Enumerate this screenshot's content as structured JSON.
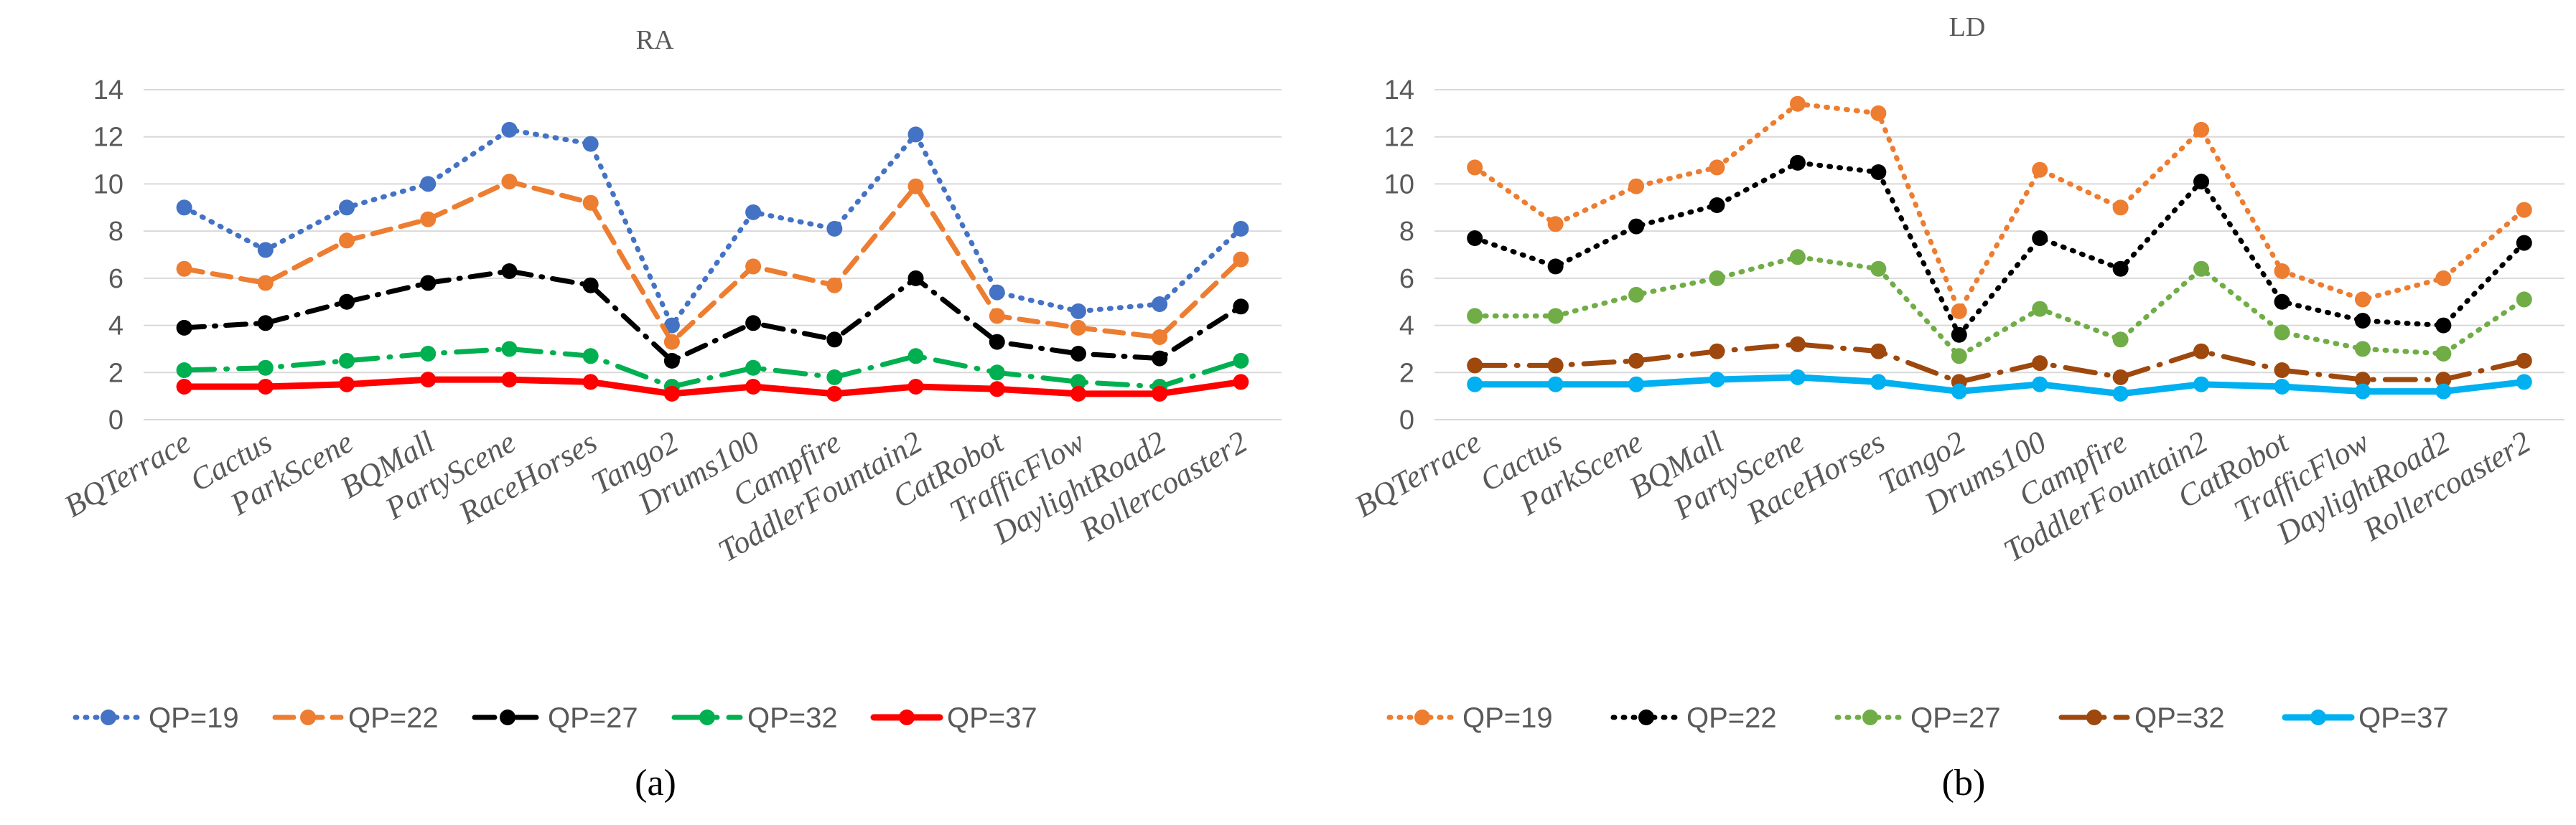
{
  "chart_data": [
    {
      "type": "line",
      "title": "RA",
      "caption": "(a)",
      "categories": [
        "BQTerrace",
        "Cactus",
        "ParkScene",
        "BQMall",
        "PartyScene",
        "RaceHorses",
        "Tango2",
        "Drums100",
        "Campfire",
        "ToddlerFountain2",
        "CatRobot",
        "TrafficFlow",
        "DaylightRoad2",
        "Rollercoaster2"
      ],
      "ylim": [
        0,
        14
      ],
      "yticks": [
        0,
        2,
        4,
        6,
        8,
        10,
        12,
        14
      ],
      "grid": true,
      "legend_position": "bottom",
      "series": [
        {
          "name": "QP=19",
          "color": "#4472C4",
          "dash": "dot",
          "values": [
            9.0,
            7.2,
            9.0,
            10.0,
            12.3,
            11.7,
            4.0,
            8.8,
            8.1,
            12.1,
            5.4,
            4.6,
            4.9,
            8.1
          ]
        },
        {
          "name": "QP=22",
          "color": "#ED7D31",
          "dash": "dash",
          "values": [
            6.4,
            5.8,
            7.6,
            8.5,
            10.1,
            9.2,
            3.3,
            6.5,
            5.7,
            9.9,
            4.4,
            3.9,
            3.5,
            6.8
          ]
        },
        {
          "name": "QP=27",
          "color": "#000000",
          "dash": "dashdot",
          "values": [
            3.9,
            4.1,
            5.0,
            5.8,
            6.3,
            5.7,
            2.5,
            4.1,
            3.4,
            6.0,
            3.3,
            2.8,
            2.6,
            4.8
          ]
        },
        {
          "name": "QP=32",
          "color": "#00B050",
          "dash": "longdashdot",
          "values": [
            2.1,
            2.2,
            2.5,
            2.8,
            3.0,
            2.7,
            1.4,
            2.2,
            1.8,
            2.7,
            2.0,
            1.6,
            1.4,
            2.5
          ]
        },
        {
          "name": "QP=37",
          "color": "#FF0000",
          "dash": "solid",
          "values": [
            1.4,
            1.4,
            1.5,
            1.7,
            1.7,
            1.6,
            1.1,
            1.4,
            1.1,
            1.4,
            1.3,
            1.1,
            1.1,
            1.6
          ]
        }
      ]
    },
    {
      "type": "line",
      "title": "LD",
      "caption": "(b)",
      "categories": [
        "BQTerrace",
        "Cactus",
        "ParkScene",
        "BQMall",
        "PartyScene",
        "RaceHorses",
        "Tango2",
        "Drums100",
        "Campfire",
        "ToddlerFountain2",
        "CatRobot",
        "TrafficFlow",
        "DaylightRoad2",
        "Rollercoaster2"
      ],
      "ylim": [
        0,
        14
      ],
      "yticks": [
        0,
        2,
        4,
        6,
        8,
        10,
        12,
        14
      ],
      "grid": true,
      "legend_position": "bottom",
      "series": [
        {
          "name": "QP=19",
          "color": "#ED7D31",
          "dash": "dot",
          "values": [
            10.7,
            8.3,
            9.9,
            10.7,
            13.4,
            13.0,
            4.6,
            10.6,
            9.0,
            12.3,
            6.3,
            5.1,
            6.0,
            8.9
          ]
        },
        {
          "name": "QP=22",
          "color": "#000000",
          "dash": "dot",
          "values": [
            7.7,
            6.5,
            8.2,
            9.1,
            10.9,
            10.5,
            3.6,
            7.7,
            6.4,
            10.1,
            5.0,
            4.2,
            4.0,
            7.5
          ]
        },
        {
          "name": "QP=27",
          "color": "#70AD47",
          "dash": "dot",
          "values": [
            4.4,
            4.4,
            5.3,
            6.0,
            6.9,
            6.4,
            2.7,
            4.7,
            3.4,
            6.4,
            3.7,
            3.0,
            2.8,
            5.1
          ]
        },
        {
          "name": "QP=32",
          "color": "#9E480E",
          "dash": "longdashdot",
          "values": [
            2.3,
            2.3,
            2.5,
            2.9,
            3.2,
            2.9,
            1.6,
            2.4,
            1.8,
            2.9,
            2.1,
            1.7,
            1.7,
            2.5
          ]
        },
        {
          "name": "QP=37",
          "color": "#00B0F0",
          "dash": "solid",
          "values": [
            1.5,
            1.5,
            1.5,
            1.7,
            1.8,
            1.6,
            1.2,
            1.5,
            1.1,
            1.5,
            1.4,
            1.2,
            1.2,
            1.6
          ]
        }
      ]
    }
  ]
}
